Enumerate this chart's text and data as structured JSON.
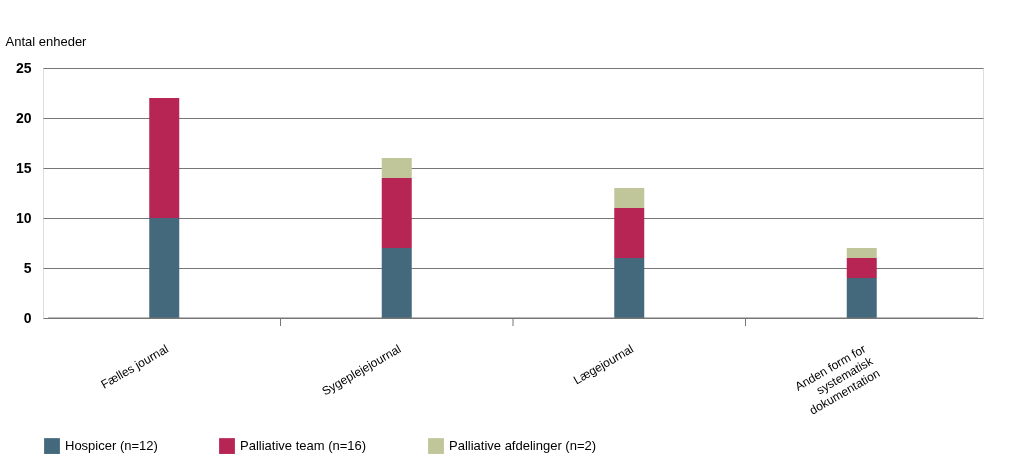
{
  "chart_data": {
    "type": "bar",
    "stacked": true,
    "ylabel": "Antal enheder",
    "categories": [
      "Fælles journal",
      "Sygeplejejournal",
      "Lægejournal",
      "Anden form for systematisk dokumentation"
    ],
    "series": [
      {
        "name": "Hospicer (n=12)",
        "color": "#44697d",
        "values": [
          10,
          7,
          6,
          4
        ]
      },
      {
        "name": "Palliative team (n=16)",
        "color": "#b72554",
        "values": [
          12,
          7,
          5,
          2
        ]
      },
      {
        "name": "Palliative afdelinger (n=2)",
        "color": "#c1c69a",
        "values": [
          0,
          2,
          2,
          1
        ]
      }
    ],
    "ylim": [
      0,
      25
    ],
    "yticks": [
      0,
      5,
      10,
      15,
      20,
      25
    ],
    "grid": "y",
    "legend": "bottom left"
  }
}
